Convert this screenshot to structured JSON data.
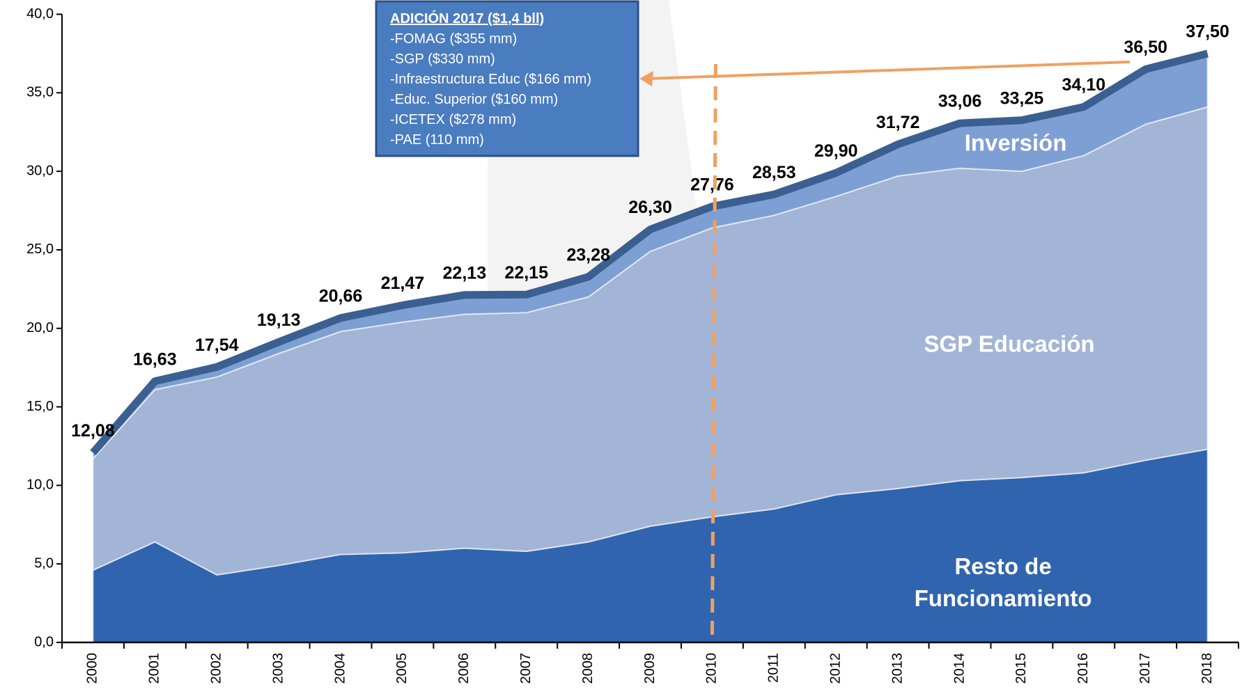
{
  "chart_data": {
    "type": "stacked_area",
    "categories": [
      "2000",
      "2001",
      "2002",
      "2003",
      "2004",
      "2005",
      "2006",
      "2007",
      "2008",
      "2009",
      "2010",
      "2011",
      "2012",
      "2013",
      "2014",
      "2015",
      "2016",
      "2017",
      "2018"
    ],
    "series": [
      {
        "name": "Resto de Funcionamiento",
        "color": "#3064ae",
        "values": [
          4.6,
          6.4,
          4.3,
          4.9,
          5.6,
          5.7,
          6.0,
          5.8,
          6.4,
          7.4,
          8.0,
          8.5,
          9.4,
          9.8,
          10.3,
          10.5,
          10.8,
          11.6,
          12.3
        ]
      },
      {
        "name": "SGP Educación",
        "color": "#a3b5d6",
        "values": [
          7.1,
          9.7,
          12.6,
          13.5,
          14.2,
          14.7,
          14.9,
          15.2,
          15.6,
          17.5,
          18.4,
          18.7,
          19.0,
          19.9,
          19.9,
          19.5,
          20.2,
          21.4,
          21.8
        ]
      },
      {
        "name": "Inversión",
        "color": "#7e9fd4",
        "values": [
          0.4,
          0.5,
          0.6,
          0.7,
          0.9,
          1.1,
          1.2,
          1.2,
          1.3,
          1.4,
          1.4,
          1.3,
          1.5,
          2.0,
          2.9,
          3.3,
          3.1,
          3.5,
          3.4
        ]
      }
    ],
    "totals": {
      "color": "#3b5f91",
      "values": [
        12.08,
        16.63,
        17.54,
        19.13,
        20.66,
        21.47,
        22.13,
        22.15,
        23.28,
        26.3,
        27.76,
        28.53,
        29.9,
        31.72,
        33.06,
        33.25,
        34.1,
        36.5,
        37.5
      ],
      "value_labels": [
        "12,08",
        "16,63",
        "17,54",
        "19,13",
        "20,66",
        "21,47",
        "22,13",
        "22,15",
        "23,28",
        "26,30",
        "27,76",
        "28,53",
        "29,90",
        "31,72",
        "33,06",
        "33,25",
        "34,10",
        "36,50",
        "37,50"
      ]
    },
    "ylim": [
      0,
      40
    ],
    "yticks": [
      {
        "value": 0,
        "label": "0,0"
      },
      {
        "value": 5,
        "label": "5,0"
      },
      {
        "value": 10,
        "label": "10,0"
      },
      {
        "value": 15,
        "label": "15,0"
      },
      {
        "value": 20,
        "label": "20,0"
      },
      {
        "value": 25,
        "label": "25,0"
      },
      {
        "value": 30,
        "label": "30,0"
      },
      {
        "value": 35,
        "label": "35,0"
      },
      {
        "value": 40,
        "label": "40,0"
      }
    ],
    "annotation": {
      "title": "ADICIÓN 2017 ($1,4 bll)",
      "lines": [
        "-FOMAG ($355 mm)",
        "-SGP ($330 mm)",
        "-Infraestructura Educ ($166 mm)",
        "-Educ. Superior ($160 mm)",
        "-ICETEX ($278 mm)",
        "-PAE (110 mm)"
      ]
    }
  }
}
